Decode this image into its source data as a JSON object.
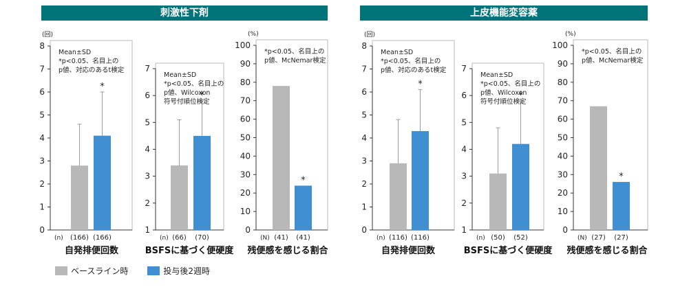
{
  "headers": [
    "刺激性下剤",
    "上皮機能変容薬"
  ],
  "legend": {
    "baseline": "ベースライン時",
    "after": "投与後2週時",
    "baseline_color": "#b8b8b8",
    "after_color": "#3f8fd2"
  },
  "chart_data": [
    {
      "type": "bar",
      "group": "刺激性下剤",
      "title": "自発排便回数",
      "unit": "(回)",
      "ylim": [
        0,
        8
      ],
      "yticks": [
        0,
        1,
        2,
        3,
        4,
        5,
        6,
        7,
        8
      ],
      "n_label": "(n)",
      "n": [
        "(166)",
        "(166)"
      ],
      "series": [
        {
          "name": "ベースライン時",
          "value": 2.8,
          "sd_upper": 4.6
        },
        {
          "name": "投与後2週時",
          "value": 4.1,
          "sd_upper": 6.0
        }
      ],
      "significance": "*",
      "note": [
        "Mean±SD",
        "*p<0.05、名目上の",
        "p値、対応のあるt検定"
      ]
    },
    {
      "type": "bar",
      "group": "刺激性下剤",
      "title": "BSFSに基づく便硬度",
      "unit": "",
      "ylim": [
        1,
        7
      ],
      "yticks": [
        1,
        2,
        3,
        4,
        5,
        6,
        7
      ],
      "n_label": "(n)",
      "n": [
        "(66)",
        "(70)"
      ],
      "series": [
        {
          "name": "ベースライン時",
          "value": 3.4,
          "sd_upper": 5.1
        },
        {
          "name": "投与後2週時",
          "value": 4.5,
          "sd_upper": 5.8
        }
      ],
      "significance": "*",
      "note": [
        "Mean±SD",
        "*p<0.05、名目上の",
        "p値、Wilcoxon",
        "符号付順位検定"
      ]
    },
    {
      "type": "bar",
      "group": "刺激性下剤",
      "title": "残便感を感じる割合",
      "unit": "(%)",
      "ylim": [
        0,
        100
      ],
      "yticks": [
        0,
        10,
        20,
        30,
        40,
        50,
        60,
        70,
        80,
        90,
        100
      ],
      "n_label": "(N)",
      "n": [
        "(41)",
        "(41)"
      ],
      "series": [
        {
          "name": "ベースライン時",
          "value": 78,
          "sd_upper": null
        },
        {
          "name": "投与後2週時",
          "value": 24,
          "sd_upper": null
        }
      ],
      "significance": "*",
      "note": [
        "*p<0.05、名目上の",
        "p値、McNemar検定"
      ]
    },
    {
      "type": "bar",
      "group": "上皮機能変容薬",
      "title": "自発排便回数",
      "unit": "(回)",
      "ylim": [
        0,
        8
      ],
      "yticks": [
        0,
        1,
        2,
        3,
        4,
        5,
        6,
        7,
        8
      ],
      "n_label": "(n)",
      "n": [
        "(116)",
        "(116)"
      ],
      "series": [
        {
          "name": "ベースライン時",
          "value": 2.9,
          "sd_upper": 4.8
        },
        {
          "name": "投与後2週時",
          "value": 4.3,
          "sd_upper": 6.1
        }
      ],
      "significance": "*",
      "note": [
        "Mean±SD",
        "*p<0.05、名目上の",
        "p値、対応のあるt検定"
      ]
    },
    {
      "type": "bar",
      "group": "上皮機能変容薬",
      "title": "BSFSに基づく便硬度",
      "unit": "",
      "ylim": [
        1,
        7
      ],
      "yticks": [
        1,
        2,
        3,
        4,
        5,
        6,
        7
      ],
      "n_label": "(n)",
      "n": [
        "(50)",
        "(52)"
      ],
      "series": [
        {
          "name": "ベースライン時",
          "value": 3.1,
          "sd_upper": 4.8
        },
        {
          "name": "投与後2週時",
          "value": 4.2,
          "sd_upper": 5.8
        }
      ],
      "significance": "*",
      "note": [
        "Mean±SD",
        "*p<0.05、名目上の",
        "p値、Wilcoxon",
        "符号付順位検定"
      ]
    },
    {
      "type": "bar",
      "group": "上皮機能変容薬",
      "title": "残便感を感じる割合",
      "unit": "(%)",
      "ylim": [
        0,
        100
      ],
      "yticks": [
        0,
        10,
        20,
        30,
        40,
        50,
        60,
        70,
        80,
        90,
        100
      ],
      "n_label": "(N)",
      "n": [
        "(27)",
        "(27)"
      ],
      "series": [
        {
          "name": "ベースライン時",
          "value": 67,
          "sd_upper": null
        },
        {
          "name": "投与後2週時",
          "value": 26,
          "sd_upper": null
        }
      ],
      "significance": "*",
      "note": [
        "*p<0.05、名目上の",
        "p値、McNemar検定"
      ]
    }
  ]
}
